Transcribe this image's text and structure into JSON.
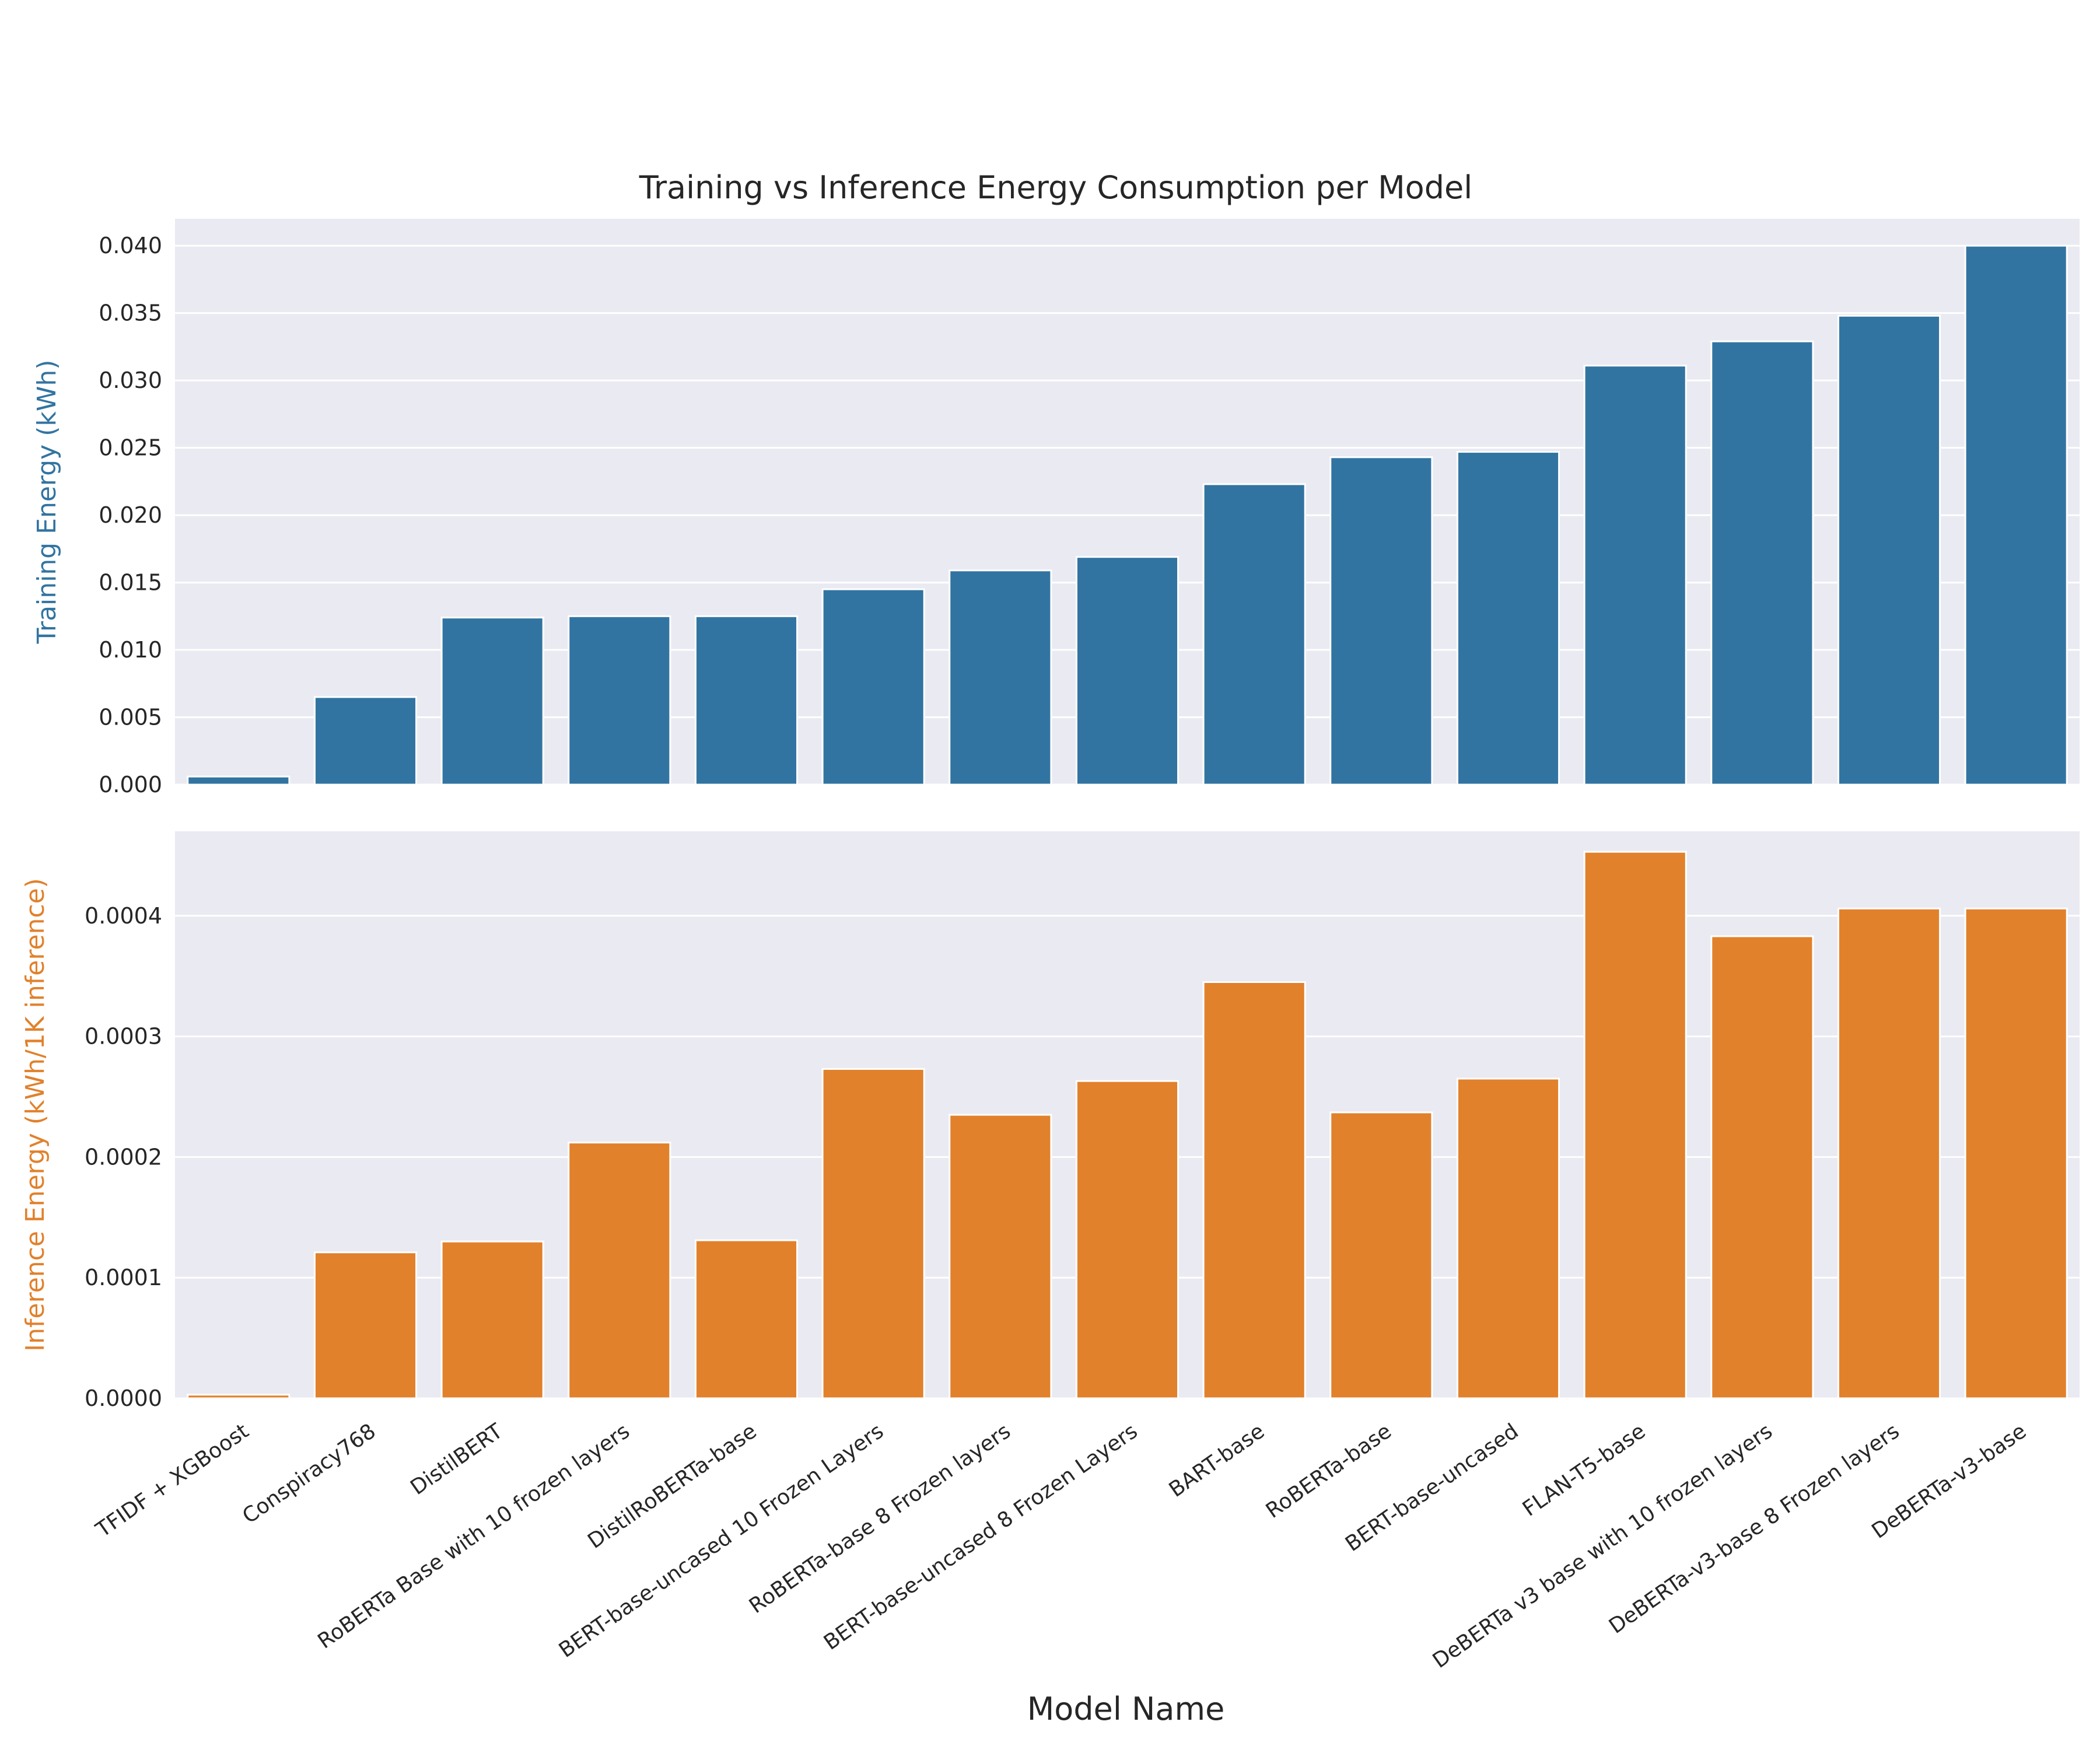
{
  "chart_data": {
    "type": "bar",
    "title": "Training vs Inference Energy Consumption per Model",
    "xlabel": "Model Name",
    "categories": [
      "TFIDF + XGBoost",
      "Conspiracy768",
      "DistilBERT",
      "RoBERTa Base with 10 frozen layers",
      "DistilRoBERTa-base",
      "BERT-base-uncased 10 Frozen Layers",
      "RoBERTa-base 8 Frozen layers",
      "BERT-base-uncased 8 Frozen Layers",
      "BART-base",
      "RoBERTa-base",
      "BERT-base-uncased",
      "FLAN-T5-base",
      "DeBERTa v3 base with 10 frozen layers",
      "DeBERTa-v3-base 8 Frozen layers",
      "DeBERTa-v3-base"
    ],
    "grid": true,
    "panels": [
      {
        "ylabel": "Training Energy (kWh)",
        "color": "#3274a1",
        "ylim": [
          0,
          0.042
        ],
        "yticks": [
          "0.000",
          "0.005",
          "0.010",
          "0.015",
          "0.020",
          "0.025",
          "0.030",
          "0.035",
          "0.040"
        ],
        "ytick_values": [
          0,
          0.005,
          0.01,
          0.015,
          0.02,
          0.025,
          0.03,
          0.035,
          0.04
        ],
        "values": [
          0.0006,
          0.0065,
          0.0124,
          0.0125,
          0.0125,
          0.0145,
          0.0159,
          0.0169,
          0.0223,
          0.0243,
          0.0247,
          0.0311,
          0.0329,
          0.0348,
          0.04
        ]
      },
      {
        "ylabel": "Inference Energy (kWh/1K inference)",
        "color": "#e1812c",
        "ylim": [
          0,
          0.00047
        ],
        "yticks": [
          "0.0000",
          "0.0001",
          "0.0002",
          "0.0003",
          "0.0004"
        ],
        "ytick_values": [
          0,
          0.0001,
          0.0002,
          0.0003,
          0.0004
        ],
        "values": [
          3e-06,
          0.000121,
          0.00013,
          0.000212,
          0.000131,
          0.000273,
          0.000235,
          0.000263,
          0.000345,
          0.000237,
          0.000265,
          0.000453,
          0.000383,
          0.000406,
          0.000406
        ]
      }
    ]
  }
}
